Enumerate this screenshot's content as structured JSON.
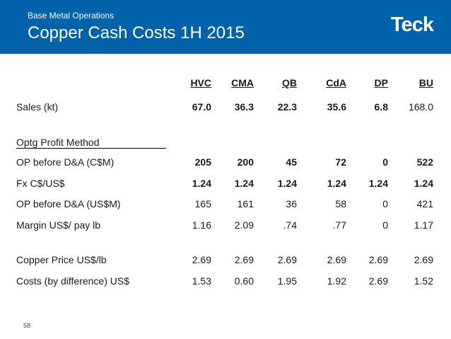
{
  "header": {
    "subtitle": "Base Metal Operations",
    "title": "Copper Cash Costs 1H 2015",
    "logo": "Teck",
    "background_color": "#0062a8"
  },
  "table": {
    "columns": [
      "HVC",
      "CMA",
      "QB",
      "CdA",
      "DP",
      "BU"
    ],
    "rows": [
      {
        "label": "Sales (kt)",
        "bold": true,
        "values": [
          "67.0",
          "36.3",
          "22.3",
          "35.6",
          "6.8",
          "168.0"
        ],
        "last_bold": false
      },
      {
        "label": "Optg Profit Method",
        "section": true
      },
      {
        "label": "OP before D&A (C$M)",
        "bold": true,
        "values": [
          "205",
          "200",
          "45",
          "72",
          "0",
          "522"
        ],
        "last_bold": true
      },
      {
        "label": "Fx C$/US$",
        "bold": true,
        "values": [
          "1.24",
          "1.24",
          "1.24",
          "1.24",
          "1.24",
          "1.24"
        ],
        "last_bold": true
      },
      {
        "label": "OP before D&A (US$M)",
        "bold": false,
        "values": [
          "165",
          "161",
          "36",
          "58",
          "0",
          "421"
        ],
        "last_bold": false
      },
      {
        "label": "Margin US$/ pay lb",
        "bold": false,
        "values": [
          "1.16",
          "2.09",
          ".74",
          ".77",
          "0",
          "1.17"
        ],
        "last_bold": false
      },
      {
        "label": "Copper Price US$/lb",
        "bold": false,
        "values": [
          "2.69",
          "2.69",
          "2.69",
          "2.69",
          "2.69",
          "2.69"
        ],
        "last_bold": false
      },
      {
        "label": "Costs (by difference) US$",
        "bold": false,
        "values": [
          "1.53",
          "0.60",
          "1.95",
          "1.92",
          "2.69",
          "1.52"
        ],
        "last_bold": false
      }
    ]
  },
  "footer": {
    "page_number": "58"
  }
}
